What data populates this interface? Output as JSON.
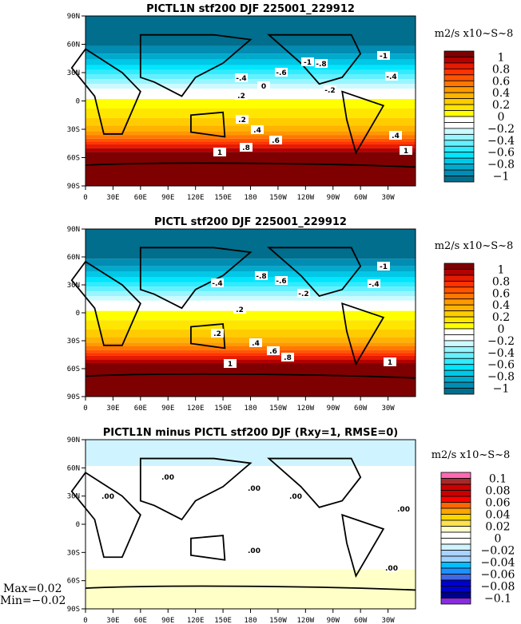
{
  "panels": [
    {
      "title": "PICTL1N stf200 DJF 225001_229912",
      "units": "m2/s x10~S~8",
      "colorbar": {
        "labels": [
          "1",
          "0.8",
          "0.6",
          "0.4",
          "0.2",
          "0",
          "−0.2",
          "−0.4",
          "−0.6",
          "−0.8",
          "−1"
        ],
        "colors": [
          "#7f0000",
          "#b30000",
          "#e61a00",
          "#ff3300",
          "#ff5500",
          "#ff7700",
          "#ff9900",
          "#ffb300",
          "#ffcc00",
          "#ffe600",
          "#ffff00",
          "#ffffff",
          "#ffffff",
          "#ccfaff",
          "#99f5ff",
          "#66f0ff",
          "#33ebff",
          "#00e6ff",
          "#00c8e6",
          "#00aacc",
          "#008cb3",
          "#006e8c"
        ]
      },
      "contour_labels": [
        "-1",
        "-.8",
        "-.6",
        "-.4",
        "0",
        "-1",
        "-.4",
        "-.2",
        ".2",
        ".2",
        ".4",
        ".4",
        ".6",
        ".8",
        "1",
        "1"
      ]
    },
    {
      "title": "PICTL stf200 DJF 225001_229912",
      "units": "m2/s x10~S~8",
      "colorbar": {
        "labels": [
          "1",
          "0.8",
          "0.6",
          "0.4",
          "0.2",
          "0",
          "−0.2",
          "−0.4",
          "−0.6",
          "−0.8",
          "−1"
        ],
        "colors": [
          "#7f0000",
          "#b30000",
          "#e61a00",
          "#ff3300",
          "#ff5500",
          "#ff7700",
          "#ff9900",
          "#ffb300",
          "#ffcc00",
          "#ffe600",
          "#ffff00",
          "#ffffff",
          "#ffffff",
          "#ccfaff",
          "#99f5ff",
          "#66f0ff",
          "#33ebff",
          "#00e6ff",
          "#00c8e6",
          "#00aacc",
          "#008cb3",
          "#006e8c"
        ]
      },
      "contour_labels": [
        "-.4",
        "-.8",
        "-.6",
        "-.2",
        "-1",
        "-.4",
        ".2",
        ".2",
        ".4",
        ".6",
        ".8",
        "1",
        "1"
      ]
    },
    {
      "title": "PICTL1N minus PICTL stf200 DJF (Rxy=1, RMSE=0)",
      "units": "m2/s x10~S~8",
      "colorbar": {
        "labels": [
          "0.1",
          "0.08",
          "0.06",
          "0.04",
          "0.02",
          "0",
          "−0.02",
          "−0.04",
          "−0.06",
          "−0.08",
          "−0.1"
        ],
        "colors": [
          "#ff69b4",
          "#a52a2a",
          "#cc0000",
          "#c80000",
          "#ff0000",
          "#ff6600",
          "#ffa500",
          "#ffd700",
          "#ffe14d",
          "#ffffc8",
          "#ffffff",
          "#ffffff",
          "#d0f4ff",
          "#aad4ff",
          "#a0d0ff",
          "#00bfff",
          "#1e90ff",
          "#4169e1",
          "#0000cd",
          "#0000cd",
          "#00008b",
          "#8a2be2"
        ]
      },
      "contour_labels": [
        ".00",
        ".00",
        ".00",
        ".00",
        ".00",
        ".00",
        ".00"
      ],
      "max_label": "Max=0.02",
      "min_label": "Min=−0.02"
    }
  ],
  "lon_ticks": [
    "0",
    "30E",
    "60E",
    "90E",
    "120E",
    "150E",
    "180",
    "150W",
    "120W",
    "90W",
    "60W",
    "30W"
  ],
  "lat_ticks": [
    "90N",
    "60N",
    "30N",
    "0",
    "30S",
    "60S",
    "90S"
  ]
}
